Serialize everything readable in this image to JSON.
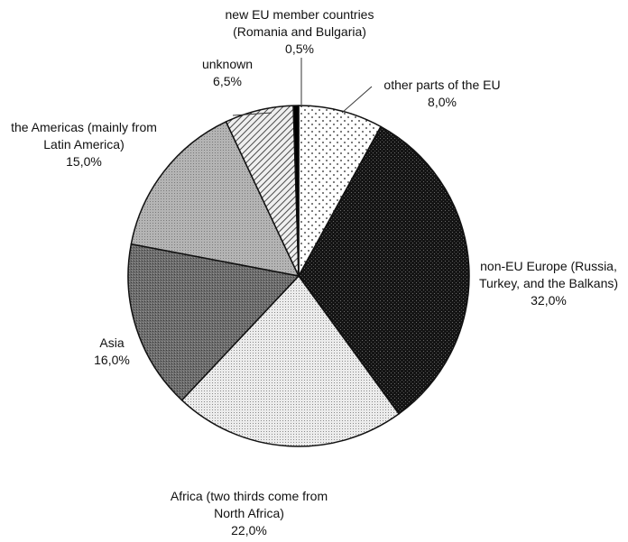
{
  "chart_data": {
    "type": "pie",
    "title": "",
    "start_angle_deg": 0,
    "direction": "clockwise",
    "slices": [
      {
        "label_lines": [
          "other parts of the EU",
          "8,0%"
        ],
        "category": "other parts of the EU",
        "value": 8.0,
        "value_label": "8,0%",
        "pattern": "sparse-dots"
      },
      {
        "label_lines": [
          "non-EU Europe (Russia,",
          "Turkey, and the Balkans)",
          "32,0%"
        ],
        "category": "non-EU Europe (Russia, Turkey, and the Balkans)",
        "value": 32.0,
        "value_label": "32,0%",
        "pattern": "black-speckle"
      },
      {
        "label_lines": [
          "Africa (two thirds come from",
          "North Africa)",
          "22,0%"
        ],
        "category": "Africa (two thirds come from North Africa)",
        "value": 22.0,
        "value_label": "22,0%",
        "pattern": "light-dots"
      },
      {
        "label_lines": [
          "Asia",
          "16,0%"
        ],
        "category": "Asia",
        "value": 16.0,
        "value_label": "16,0%",
        "pattern": "dark-grey-dots"
      },
      {
        "label_lines": [
          "the Americas (mainly from",
          "Latin America)",
          "15,0%"
        ],
        "category": "the Americas (mainly from Latin America)",
        "value": 15.0,
        "value_label": "15,0%",
        "pattern": "medium-grey-dots"
      },
      {
        "label_lines": [
          "unknown",
          "6,5%"
        ],
        "category": "unknown",
        "value": 6.5,
        "value_label": "6,5%",
        "pattern": "diagonal-hatch"
      },
      {
        "label_lines": [
          "new EU member countries",
          "(Romania and Bulgaria)",
          "0,5%"
        ],
        "category": "new EU member countries (Romania and Bulgaria)",
        "value": 0.5,
        "value_label": "0,5%",
        "pattern": "solid-black"
      }
    ]
  }
}
